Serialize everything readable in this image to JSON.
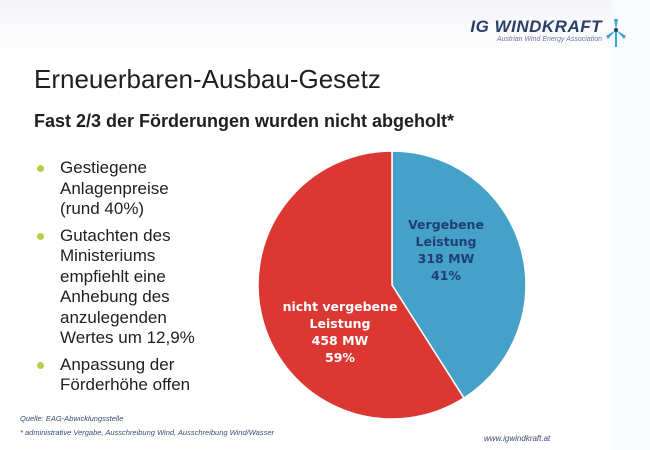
{
  "logo": {
    "name": "IG WINDKRAFT",
    "tagline": "Austrian Wind Energy Association",
    "accent_color": "#3aa3d5",
    "icon": "wind-turbine-icon"
  },
  "slide": {
    "title": "Erneuerbaren-Ausbau-Gesetz",
    "subtitle": "Fast 2/3 der Förderungen wurden nicht abgeholt*",
    "bullet_color": "#b5cf4b",
    "bullets": [
      {
        "text": "Gestiegene\nAnlagenpreise\n(rund 40%)"
      },
      {
        "text": "Gutachten des\nMinisteriums\nempfiehlt eine\nAnhebung des\nanzulegenden\nWertes um 12,9%"
      },
      {
        "text": "Anpassung der\nFörderhöhe offen"
      }
    ]
  },
  "chart_data": {
    "type": "pie",
    "title": "",
    "slices": [
      {
        "label_lines": [
          "Vergebene",
          "Leistung",
          "318 MW",
          "41%"
        ],
        "value_mw": 318,
        "percent": 41,
        "color": "#45a1c8",
        "label_color": "#1f3f73"
      },
      {
        "label_lines": [
          "nicht vergebene",
          "Leistung",
          "458 MW",
          "59%"
        ],
        "value_mw": 458,
        "percent": 59,
        "color": "#dc3833",
        "label_color": "#ffffff"
      }
    ],
    "start": "12 o'clock, clockwise"
  },
  "footer": {
    "source": "Quelle: EAG-Abwicklungsstelle",
    "footnote": "* administrative Vergabe, Ausschreibung Wind, Ausschreibung Wind/Wasser",
    "url": "www.igwindkraft.at"
  }
}
